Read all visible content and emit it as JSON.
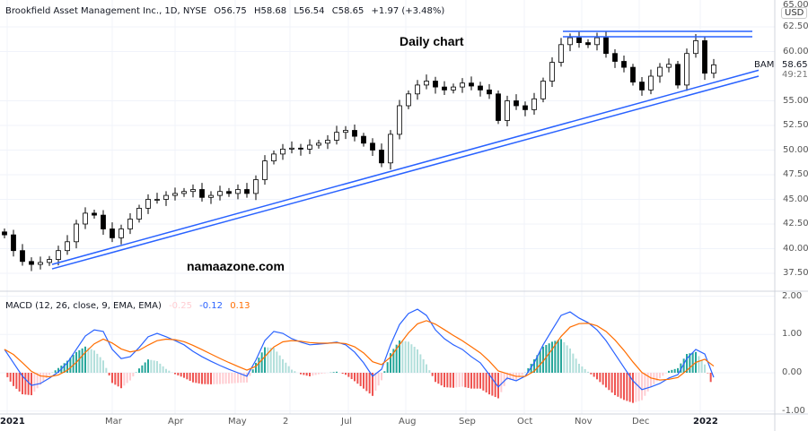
{
  "header": {
    "symbol_line": "Brookfield Asset Management Inc., 1D, NYSE",
    "open": "O56.75",
    "high": "H58.68",
    "low": "L56.54",
    "close": "C58.65",
    "change": "+1.97 (+3.48%)"
  },
  "annotations": {
    "title": "Daily chart",
    "watermark": "namaazone.com",
    "symbol_tag": "BAM"
  },
  "price_axis": {
    "currency": "USD",
    "ticks": [
      "65.00",
      "62.50",
      "60.00",
      "55.00",
      "52.50",
      "50.00",
      "47.50",
      "45.00",
      "42.50",
      "40.00",
      "37.50"
    ],
    "tick_values": [
      65,
      62.5,
      60,
      55,
      52.5,
      50,
      47.5,
      45,
      42.5,
      40,
      37.5
    ],
    "last_price": "58.65",
    "countdown": "49:21"
  },
  "macd": {
    "label": "MACD (12, 26, close, 9, EMA, EMA)",
    "hist_value": "-0.25",
    "macd_value": "-0.12",
    "signal_value": "0.13",
    "ticks": [
      "2.00",
      "1.00",
      "0.00",
      "-1.00"
    ],
    "tick_values": [
      2,
      1,
      0,
      -1
    ],
    "macd_line": [
      0.61,
      0.26,
      -0.09,
      -0.33,
      -0.28,
      -0.14,
      0.02,
      0.26,
      0.61,
      0.96,
      1.12,
      1.08,
      0.61,
      0.37,
      0.42,
      0.66,
      0.94,
      1.03,
      0.94,
      0.84,
      0.73,
      0.56,
      0.42,
      0.3,
      0.19,
      0.09,
      0.0,
      -0.09,
      0.33,
      0.84,
      1.08,
      1.03,
      0.89,
      0.8,
      0.73,
      0.75,
      0.77,
      0.8,
      0.73,
      0.54,
      0.26,
      -0.09,
      0.09,
      0.73,
      1.26,
      1.55,
      1.66,
      1.5,
      1.12,
      0.89,
      0.73,
      0.61,
      0.42,
      0.26,
      -0.05,
      -0.37,
      -0.14,
      -0.21,
      -0.09,
      0.26,
      0.73,
      1.12,
      1.5,
      1.59,
      1.43,
      1.31,
      1.12,
      0.84,
      0.49,
      0.14,
      -0.21,
      -0.44,
      -0.37,
      -0.28,
      -0.14,
      -0.05,
      0.37,
      0.61,
      0.49,
      -0.12
    ]
  },
  "time_axis": {
    "labels": [
      "2021",
      "Mar",
      "Apr",
      "May",
      "2",
      "Jul",
      "Aug",
      "Sep",
      "Oct",
      "Nov",
      "Dec",
      "2022"
    ]
  },
  "colors": {
    "up": "#26a69a",
    "up_light": "#b2dfdb",
    "down": "#ef5350",
    "down_light": "#ffcdd2",
    "macd": "#2962ff",
    "signal": "#ff6d00",
    "trendline": "#2962ff"
  },
  "chart_data": {
    "type": "candlestick",
    "closes": [
      41.4,
      39.8,
      38.7,
      38.4,
      38.6,
      38.9,
      39.8,
      40.7,
      42.5,
      43.6,
      43.4,
      42.0,
      41.1,
      42.0,
      43.0,
      44.1,
      45.0,
      45.0,
      45.4,
      45.6,
      45.8,
      46.0,
      45.2,
      45.4,
      45.8,
      45.6,
      46.0,
      45.6,
      47.0,
      48.9,
      49.6,
      50.1,
      50.2,
      50.1,
      50.5,
      50.7,
      51.0,
      51.8,
      52.0,
      51.4,
      50.7,
      50.0,
      48.7,
      51.6,
      54.5,
      55.7,
      56.6,
      57.0,
      56.4,
      56.1,
      56.4,
      56.8,
      56.5,
      56.1,
      55.7,
      53.0,
      55.0,
      54.5,
      54.1,
      55.2,
      57.0,
      58.9,
      60.7,
      61.4,
      60.9,
      60.7,
      61.4,
      59.8,
      59.0,
      58.4,
      56.9,
      56.1,
      57.5,
      58.4,
      58.7,
      56.6,
      59.8,
      61.1,
      57.8,
      58.65
    ],
    "trendlines": [
      {
        "from_price": 37.95,
        "to_price": 57.5
      },
      {
        "from_price": 38.4,
        "to_price": 58.1
      }
    ],
    "resistance_levels": [
      62.05,
      61.5
    ]
  }
}
